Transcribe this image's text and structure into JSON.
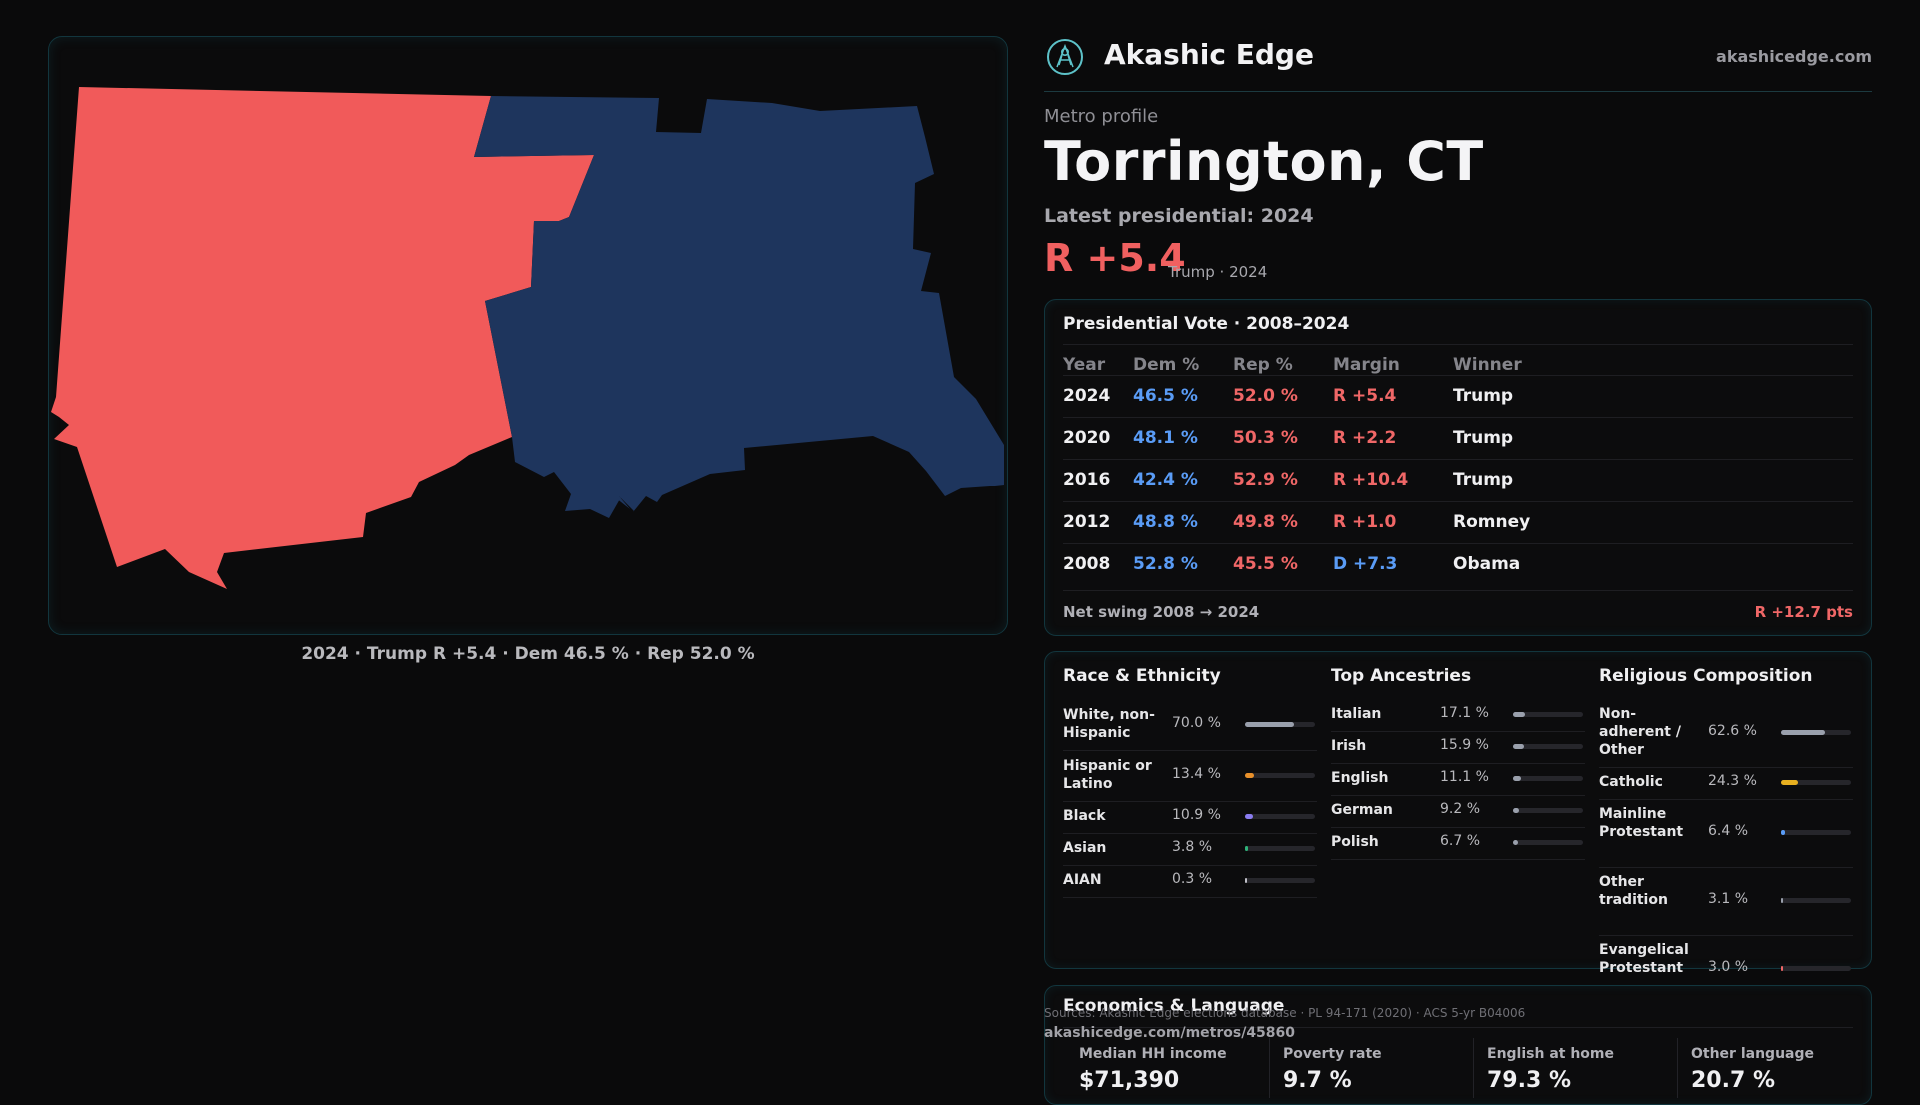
{
  "map": {
    "caption": "2024 · Trump R +5.4 · Dem 46.5 % · Rep 52.0 %",
    "colors": {
      "rep": "#f15a5a",
      "dem": "#1e355d"
    }
  },
  "brand": {
    "name": "Akashic Edge",
    "url": "akashicedge.com",
    "icon": "akashic-edge-logo-icon"
  },
  "profile": {
    "eyebrow": "Metro profile",
    "title": "Torrington, CT",
    "latest_label": "Latest presidential: 2024",
    "margin": "R +5.4",
    "margin_sub": "Trump · 2024"
  },
  "vote": {
    "title": "Presidential Vote · 2008–2024",
    "headers": [
      "Year",
      "Dem %",
      "Rep %",
      "Margin",
      "Winner"
    ],
    "rows": [
      {
        "year": "2024",
        "dem": "46.5 %",
        "rep": "52.0 %",
        "margin": "R +5.4",
        "party": "R",
        "winner": "Trump"
      },
      {
        "year": "2020",
        "dem": "48.1 %",
        "rep": "50.3 %",
        "margin": "R +2.2",
        "party": "R",
        "winner": "Trump"
      },
      {
        "year": "2016",
        "dem": "42.4 %",
        "rep": "52.9 %",
        "margin": "R +10.4",
        "party": "R",
        "winner": "Trump"
      },
      {
        "year": "2012",
        "dem": "48.8 %",
        "rep": "49.8 %",
        "margin": "R +1.0",
        "party": "R",
        "winner": "Romney"
      },
      {
        "year": "2008",
        "dem": "52.8 %",
        "rep": "45.5 %",
        "margin": "D +7.3",
        "party": "D",
        "winner": "Obama"
      }
    ],
    "swing_label": "Net swing 2008 → 2024",
    "swing_value": "R +12.7 pts"
  },
  "race": {
    "title": "Race & Ethnicity",
    "items": [
      {
        "label": "White, non-Hispanic",
        "pct": "70.0 %",
        "share": 0.7,
        "color": "#9aa0ac"
      },
      {
        "label": "Hispanic or Latino",
        "pct": "13.4 %",
        "share": 0.134,
        "color": "#e8902a"
      },
      {
        "label": "Black",
        "pct": "10.9 %",
        "share": 0.109,
        "color": "#8a7cf0"
      },
      {
        "label": "Asian",
        "pct": "3.8 %",
        "share": 0.038,
        "color": "#2fb37a"
      },
      {
        "label": "AIAN",
        "pct": "0.3 %",
        "share": 0.003,
        "color": "#c0c0c8"
      }
    ]
  },
  "ancestry": {
    "title": "Top Ancestries",
    "items": [
      {
        "label": "Italian",
        "pct": "17.1 %",
        "share": 0.171,
        "color": "#9aa0ac"
      },
      {
        "label": "Irish",
        "pct": "15.9 %",
        "share": 0.159,
        "color": "#9aa0ac"
      },
      {
        "label": "English",
        "pct": "11.1 %",
        "share": 0.111,
        "color": "#9aa0ac"
      },
      {
        "label": "German",
        "pct": "9.2 %",
        "share": 0.092,
        "color": "#9aa0ac"
      },
      {
        "label": "Polish",
        "pct": "6.7 %",
        "share": 0.067,
        "color": "#9aa0ac"
      }
    ]
  },
  "religion": {
    "title": "Religious Composition",
    "items": [
      {
        "label": "Non-adherent / Other",
        "pct": "62.6 %",
        "share": 0.626,
        "color": "#9aa0ac"
      },
      {
        "label": "Catholic",
        "pct": "24.3 %",
        "share": 0.243,
        "color": "#e8b020"
      },
      {
        "label": "Mainline Protestant",
        "pct": "6.4 %",
        "share": 0.064,
        "color": "#5a9cf6"
      },
      {
        "label": "Other tradition",
        "pct": "3.1 %",
        "share": 0.031,
        "color": "#9aa0ac"
      },
      {
        "label": "Evangelical Protestant",
        "pct": "3.0 %",
        "share": 0.03,
        "color": "#f06767"
      }
    ]
  },
  "economics": {
    "title": "Economics & Language",
    "cells": [
      {
        "label": "Median HH income",
        "value": "$71,390"
      },
      {
        "label": "Poverty rate",
        "value": "9.7 %"
      },
      {
        "label": "English at home",
        "value": "79.3 %"
      },
      {
        "label": "Other language",
        "value": "20.7 %"
      }
    ]
  },
  "footer": {
    "sources": "Sources: Akashic Edge elections database · PL 94-171 (2020) · ACS 5-yr B04006",
    "url": "akashicedge.com/metros/45860"
  }
}
